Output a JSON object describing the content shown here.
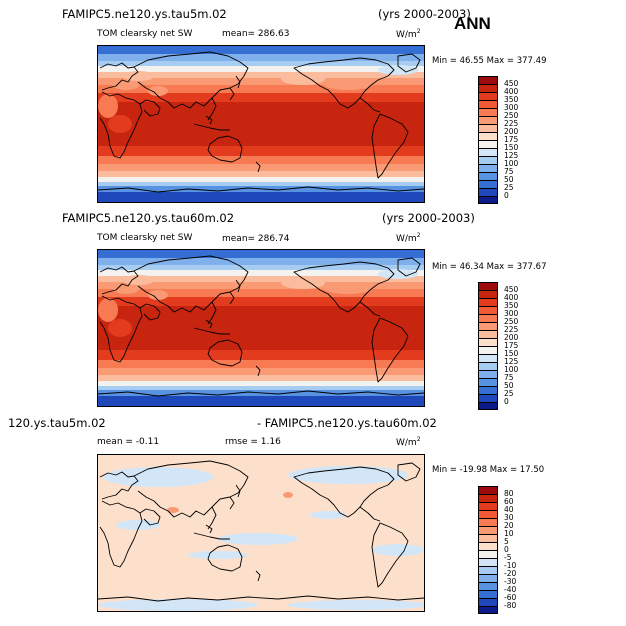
{
  "season": "ANN",
  "unit": "W/m2",
  "colorbar_colors": [
    "#9e0b0e",
    "#c7250f",
    "#e23b1e",
    "#f25a36",
    "#f77a52",
    "#f99a74",
    "#fbbc9d",
    "#fde0cc",
    "#f4f2ee",
    "#d2e6f7",
    "#a6ccf2",
    "#7fb0ec",
    "#5893e2",
    "#356fd4",
    "#1f49bb",
    "#0b1c8a"
  ],
  "panels": [
    {
      "title_left": "FAMIPC5.ne120.ys.tau5m.02",
      "title_right": "(yrs 2000-2003)",
      "variable": "TOM clearsky net SW",
      "stat1": "mean= 286.63",
      "stat2": "",
      "unit_main": "W/m",
      "unit_exp": "2",
      "minmax": "Min =   46.55  Max =  377.49",
      "colorbar_labels": [
        "450",
        "400",
        "350",
        "300",
        "250",
        "225",
        "200",
        "175",
        "150",
        "125",
        "100",
        "75",
        "50",
        "25",
        "0"
      ]
    },
    {
      "title_left": "FAMIPC5.ne120.ys.tau60m.02",
      "title_right": "(yrs 2000-2003)",
      "variable": "TOM clearsky net SW",
      "stat1": "mean= 286.74",
      "stat2": "",
      "unit_main": "W/m",
      "unit_exp": "2",
      "minmax": "Min =   46.34  Max =  377.67",
      "colorbar_labels": [
        "450",
        "400",
        "350",
        "300",
        "250",
        "225",
        "200",
        "175",
        "150",
        "125",
        "100",
        "75",
        "50",
        "25",
        "0"
      ]
    },
    {
      "title_left": "120.ys.tau5m.02",
      "title_right": "- FAMIPC5.ne120.ys.tau60m.02",
      "variable": "",
      "stat1": "mean =   -0.11",
      "stat2": "rmse =    1.16",
      "unit_main": "W/m",
      "unit_exp": "2",
      "minmax": "Min = -19.98  Max =   17.50",
      "colorbar_labels": [
        "80",
        "60",
        "40",
        "30",
        "20",
        "10",
        "5",
        "0",
        "-5",
        "-10",
        "-20",
        "-30",
        "-40",
        "-60",
        "-80"
      ]
    }
  ]
}
